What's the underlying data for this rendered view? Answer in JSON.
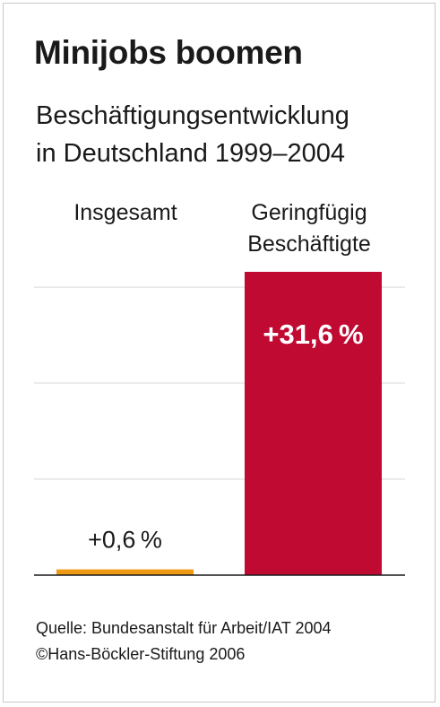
{
  "chart_data": {
    "type": "bar",
    "title": "Minijobs boomen",
    "subtitle_lines": [
      "Beschäftigungsentwicklung",
      "in Deutschland 1999–2004"
    ],
    "categories": [
      [
        "Insgesamt"
      ],
      [
        "Geringfügig",
        "Beschäftigte"
      ]
    ],
    "values": [
      0.6,
      31.6
    ],
    "value_labels": [
      "+0,6 %",
      "+31,6 %"
    ],
    "colors": [
      "#ee9a14",
      "#c00a32"
    ],
    "ylim": [
      0,
      33
    ],
    "grid": true,
    "gridline_values": [
      10,
      20,
      30
    ]
  },
  "footer": {
    "source": "Quelle: Bundesanstalt für Arbeit/IAT 2004",
    "copyright": "©Hans-Böckler-Stiftung 2006"
  }
}
